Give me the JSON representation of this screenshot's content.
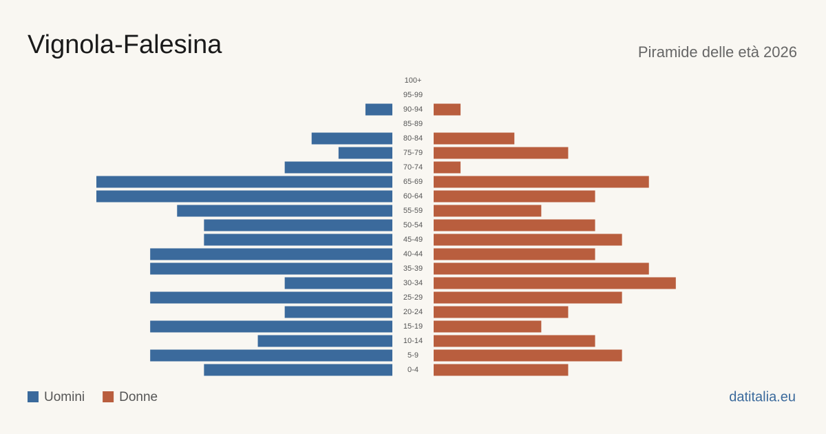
{
  "chart_data": {
    "type": "pyramid",
    "title": "Vignola-Falesina",
    "subtitle": "Piramide delle età 2026",
    "source": "datitalia.eu",
    "categories": [
      "100+",
      "95-99",
      "90-94",
      "85-89",
      "80-84",
      "75-79",
      "70-74",
      "65-69",
      "60-64",
      "55-59",
      "50-54",
      "45-49",
      "40-44",
      "35-39",
      "30-34",
      "25-29",
      "20-24",
      "15-19",
      "10-14",
      "5-9",
      "0-4"
    ],
    "series": [
      {
        "name": "Uomini",
        "color": "#3b6a9c",
        "values": [
          0,
          0,
          1,
          0,
          3,
          2,
          4,
          11,
          11,
          8,
          7,
          7,
          9,
          9,
          4,
          9,
          4,
          9,
          5,
          9,
          7
        ]
      },
      {
        "name": "Donne",
        "color": "#b95e3e",
        "values": [
          0,
          0,
          1,
          0,
          3,
          5,
          1,
          8,
          6,
          4,
          6,
          7,
          6,
          8,
          9,
          7,
          5,
          4,
          6,
          7,
          5
        ]
      }
    ],
    "xlim": [
      0,
      11
    ]
  }
}
